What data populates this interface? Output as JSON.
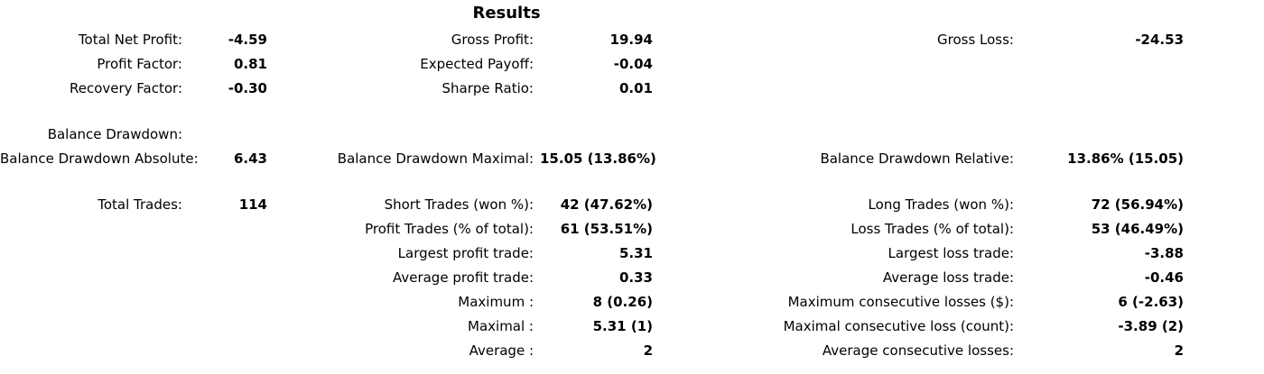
{
  "title": "Results",
  "summary": {
    "total_net_profit": {
      "label": "Total Net Profit:",
      "value": "-4.59"
    },
    "gross_profit": {
      "label": "Gross Profit:",
      "value": "19.94"
    },
    "gross_loss": {
      "label": "Gross Loss:",
      "value": "-24.53"
    },
    "profit_factor": {
      "label": "Profit Factor:",
      "value": "0.81"
    },
    "expected_payoff": {
      "label": "Expected Payoff:",
      "value": "-0.04"
    },
    "recovery_factor": {
      "label": "Recovery Factor:",
      "value": "-0.30"
    },
    "sharpe_ratio": {
      "label": "Sharpe Ratio:",
      "value": "0.01"
    }
  },
  "drawdown": {
    "header_label": "Balance Drawdown:",
    "absolute": {
      "label": "Balance Drawdown Absolute:",
      "value": "6.43"
    },
    "maximal": {
      "label": "Balance Drawdown Maximal:",
      "value": "15.05 (13.86%)"
    },
    "relative": {
      "label": "Balance Drawdown Relative:",
      "value": "13.86% (15.05)"
    }
  },
  "trades": {
    "total": {
      "label": "Total Trades:",
      "value": "114"
    },
    "short": {
      "label": "Short Trades (won %):",
      "value": "42 (47.62%)"
    },
    "long": {
      "label": "Long Trades (won %):",
      "value": "72 (56.94%)"
    },
    "profit_trades": {
      "label": "Profit Trades (% of total):",
      "value": "61 (53.51%)"
    },
    "loss_trades": {
      "label": "Loss Trades (% of total):",
      "value": "53 (46.49%)"
    },
    "largest_profit": {
      "label": "Largest profit trade:",
      "value": "5.31"
    },
    "largest_loss": {
      "label": "Largest loss trade:",
      "value": "-3.88"
    },
    "average_profit": {
      "label": "Average profit trade:",
      "value": "0.33"
    },
    "average_loss": {
      "label": "Average loss trade:",
      "value": "-0.46"
    },
    "maximum": {
      "label": "Maximum :",
      "value": "8 (0.26)"
    },
    "max_consecutive_losses": {
      "label": "Maximum consecutive losses ($):",
      "value": "6 (-2.63)"
    },
    "maximal": {
      "label": "Maximal :",
      "value": "5.31 (1)"
    },
    "maximal_consecutive_loss": {
      "label": "Maximal consecutive loss (count):",
      "value": "-3.89 (2)"
    },
    "average": {
      "label": "Average :",
      "value": "2"
    },
    "average_consecutive_losses": {
      "label": "Average consecutive losses:",
      "value": "2"
    }
  }
}
